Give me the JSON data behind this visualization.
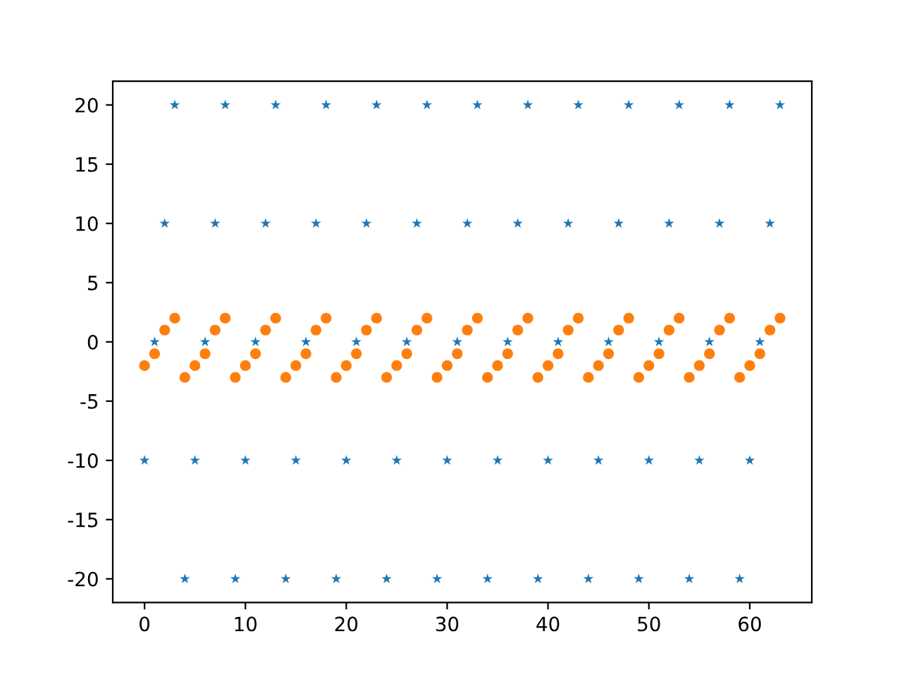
{
  "chart_data": {
    "type": "scatter",
    "x": [
      0,
      1,
      2,
      3,
      4,
      5,
      6,
      7,
      8,
      9,
      10,
      11,
      12,
      13,
      14,
      15,
      16,
      17,
      18,
      19,
      20,
      21,
      22,
      23,
      24,
      25,
      26,
      27,
      28,
      29,
      30,
      31,
      32,
      33,
      34,
      35,
      36,
      37,
      38,
      39,
      40,
      41,
      42,
      43,
      44,
      45,
      46,
      47,
      48,
      49,
      50,
      51,
      52,
      53,
      54,
      55,
      56,
      57,
      58,
      59,
      60,
      61,
      62,
      63
    ],
    "series": [
      {
        "color": "#1f77b4",
        "marker": "star",
        "values": [
          -10,
          0,
          10,
          20,
          -20,
          -10,
          0,
          10,
          20,
          -20,
          -10,
          0,
          10,
          20,
          -20,
          -10,
          0,
          10,
          20,
          -20,
          -10,
          0,
          10,
          20,
          -20,
          -10,
          0,
          10,
          20,
          -20,
          -10,
          0,
          10,
          20,
          -20,
          -10,
          0,
          10,
          20,
          -20,
          -10,
          0,
          10,
          20,
          -20,
          -10,
          0,
          10,
          20,
          -20,
          -10,
          0,
          10,
          20,
          -20,
          -10,
          0,
          10,
          20,
          -20,
          -10,
          0,
          10,
          20
        ]
      },
      {
        "color": "#ff7f0e",
        "marker": "circle",
        "values": [
          -2,
          -1,
          1,
          2,
          -3,
          -2,
          -1,
          1,
          2,
          -3,
          -2,
          -1,
          1,
          2,
          -3,
          -2,
          -1,
          1,
          2,
          -3,
          -2,
          -1,
          1,
          2,
          -3,
          -2,
          -1,
          1,
          2,
          -3,
          -2,
          -1,
          1,
          2,
          -3,
          -2,
          -1,
          1,
          2,
          -3,
          -2,
          -1,
          1,
          2,
          -3,
          -2,
          -1,
          1,
          2,
          -3,
          -2,
          -1,
          1,
          2,
          -3,
          -2,
          -1,
          1,
          2,
          -3,
          -2,
          -1,
          1,
          2
        ]
      }
    ],
    "xlim": [
      -3.15,
      66.15
    ],
    "xticks": [
      0,
      10,
      20,
      30,
      40,
      50,
      60
    ],
    "ylim": [
      -22,
      22
    ],
    "yticks": [
      -20,
      -15,
      -10,
      -5,
      0,
      5,
      10,
      15,
      20
    ],
    "grid": false,
    "legend": false
  }
}
